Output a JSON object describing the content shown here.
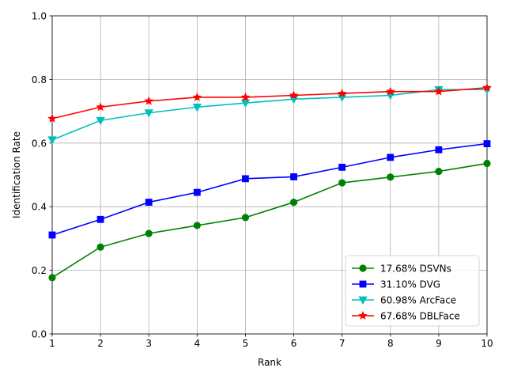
{
  "chart_data": {
    "type": "line",
    "title": "",
    "xlabel": "Rank",
    "ylabel": "Identification Rate",
    "x": [
      1,
      2,
      3,
      4,
      5,
      6,
      7,
      8,
      9,
      10
    ],
    "xlim": [
      1,
      10
    ],
    "ylim": [
      0,
      1
    ],
    "xticks": [
      "1",
      "2",
      "3",
      "4",
      "5",
      "6",
      "7",
      "8",
      "9",
      "10"
    ],
    "yticks": [
      "0.0",
      "0.2",
      "0.4",
      "0.6",
      "0.8",
      "1.0"
    ],
    "grid": true,
    "legend_position": "lower-right",
    "series": [
      {
        "name": "17.68% DSVNs",
        "color": "#008000",
        "marker": "circle",
        "values": [
          0.177,
          0.273,
          0.316,
          0.341,
          0.366,
          0.414,
          0.475,
          0.493,
          0.511,
          0.536
        ]
      },
      {
        "name": "31.10% DVG",
        "color": "#0000ff",
        "marker": "square",
        "values": [
          0.311,
          0.36,
          0.414,
          0.445,
          0.488,
          0.494,
          0.524,
          0.555,
          0.579,
          0.598
        ]
      },
      {
        "name": "60.98% ArcFace",
        "color": "#00bfbf",
        "marker": "triangle-down",
        "values": [
          0.61,
          0.671,
          0.695,
          0.713,
          0.726,
          0.738,
          0.744,
          0.75,
          0.768,
          0.768
        ]
      },
      {
        "name": "67.68% DBLFace",
        "color": "#ff0000",
        "marker": "star",
        "values": [
          0.677,
          0.713,
          0.732,
          0.744,
          0.744,
          0.75,
          0.756,
          0.762,
          0.762,
          0.774
        ]
      }
    ]
  }
}
